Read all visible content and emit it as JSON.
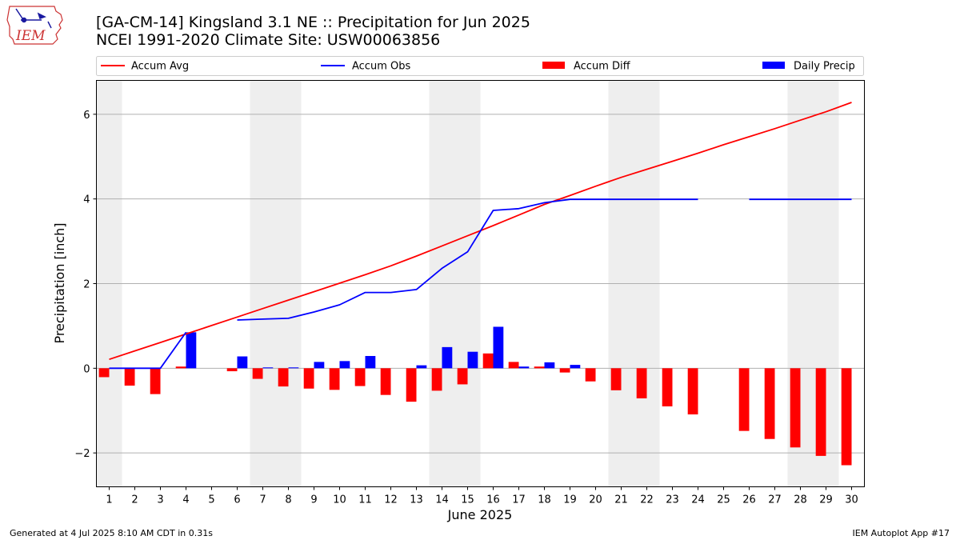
{
  "header": {
    "title_line1": "[GA-CM-14] Kingsland 3.1 NE :: Precipitation for Jun 2025",
    "title_line2": "NCEI 1991-2020 Climate Site: USW00063856",
    "logo_text": "IEM"
  },
  "footer": {
    "generated": "Generated at 4 Jul 2025 8:10 AM CDT in 0.31s",
    "app": "IEM Autoplot App #17"
  },
  "colors": {
    "avg": "#ff0000",
    "obs": "#0000ff",
    "diff": "#ff0000",
    "daily": "#0000ff",
    "weekend_band": "#eeeeee",
    "grid": "#b0b0b0"
  },
  "chart_data": {
    "type": "bar",
    "xlabel": "June 2025",
    "ylabel": "Precipitation [inch]",
    "ylim": [
      -2.8,
      6.8
    ],
    "yticks": [
      -2,
      0,
      2,
      4,
      6
    ],
    "ytick_labels": [
      "−2",
      "0",
      "2",
      "4",
      "6"
    ],
    "grid": "y",
    "legend_placement": "top",
    "legend": [
      "Accum Avg",
      "Accum Obs",
      "Accum Diff",
      "Daily Precip"
    ],
    "x": [
      1,
      2,
      3,
      4,
      5,
      6,
      7,
      8,
      9,
      10,
      11,
      12,
      13,
      14,
      15,
      16,
      17,
      18,
      19,
      20,
      21,
      22,
      23,
      24,
      25,
      26,
      27,
      28,
      29,
      30
    ],
    "x_labels": [
      "1",
      "2",
      "3",
      "4",
      "5",
      "6",
      "7",
      "8",
      "9",
      "10",
      "11",
      "12",
      "13",
      "14",
      "15",
      "16",
      "17",
      "18",
      "19",
      "20",
      "21",
      "22",
      "23",
      "24",
      "25",
      "26",
      "27",
      "28",
      "29",
      "30"
    ],
    "weekend_bands": [
      [
        1,
        1
      ],
      [
        7,
        8
      ],
      [
        14,
        15
      ],
      [
        21,
        22
      ],
      [
        28,
        29
      ]
    ],
    "series": [
      {
        "name": "Accum Avg",
        "type": "line",
        "values": [
          0.21,
          0.41,
          0.61,
          0.81,
          1.01,
          1.21,
          1.41,
          1.61,
          1.81,
          2.01,
          2.21,
          2.42,
          2.65,
          2.89,
          3.13,
          3.37,
          3.62,
          3.87,
          4.08,
          4.3,
          4.51,
          4.7,
          4.89,
          5.08,
          5.28,
          5.47,
          5.66,
          5.86,
          6.06,
          6.28
        ]
      },
      {
        "name": "Accum Obs",
        "type": "line",
        "values": [
          0.0,
          0.0,
          0.0,
          0.85,
          null,
          1.14,
          1.16,
          1.18,
          1.33,
          1.5,
          1.79,
          1.79,
          1.86,
          2.36,
          2.75,
          3.73,
          3.77,
          3.91,
          3.99,
          3.99,
          3.99,
          3.99,
          3.99,
          3.99,
          null,
          3.99,
          3.99,
          3.99,
          3.99,
          3.99
        ]
      },
      {
        "name": "Accum Diff",
        "type": "bar",
        "values": [
          -0.21,
          -0.41,
          -0.61,
          0.04,
          null,
          -0.07,
          -0.25,
          -0.43,
          -0.48,
          -0.51,
          -0.42,
          -0.63,
          -0.79,
          -0.53,
          -0.38,
          0.35,
          0.15,
          0.04,
          -0.1,
          -0.31,
          -0.52,
          -0.71,
          -0.9,
          -1.09,
          null,
          -1.48,
          -1.67,
          -1.87,
          -2.07,
          -2.29
        ]
      },
      {
        "name": "Daily Precip",
        "type": "bar",
        "values": [
          0.0,
          0.0,
          0.0,
          0.85,
          null,
          0.28,
          0.02,
          0.02,
          0.15,
          0.17,
          0.29,
          0.0,
          0.07,
          0.5,
          0.39,
          0.98,
          0.04,
          0.14,
          0.08,
          0.0,
          0.0,
          0.0,
          0.0,
          0.0,
          null,
          0.0,
          0.0,
          0.0,
          0.0,
          0.0
        ]
      }
    ]
  }
}
